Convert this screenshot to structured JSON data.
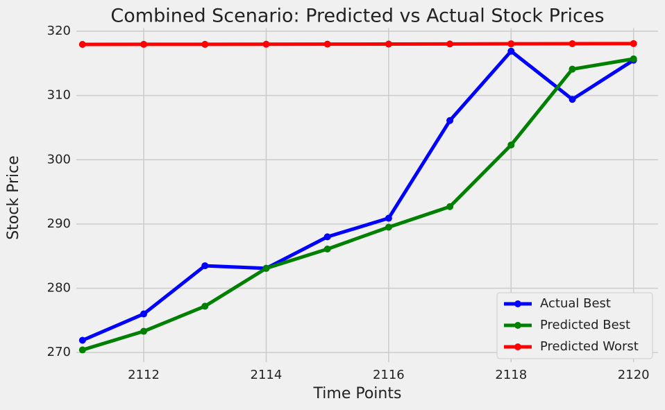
{
  "chart_data": {
    "type": "line",
    "title": "Combined Scenario: Predicted vs Actual Stock Prices",
    "x_label": "Time Points",
    "y_label": "Stock Price",
    "x": [
      2111,
      2112,
      2113,
      2114,
      2115,
      2116,
      2117,
      2118,
      2119,
      2120
    ],
    "series": [
      {
        "name": "Actual Best",
        "color": "#0000ff",
        "values": [
          271.9,
          276.0,
          283.5,
          283.1,
          288.0,
          290.9,
          306.1,
          316.9,
          309.4,
          315.5
        ]
      },
      {
        "name": "Predicted Best",
        "color": "#008000",
        "values": [
          270.4,
          273.3,
          277.2,
          283.1,
          286.1,
          289.5,
          292.7,
          302.3,
          314.1,
          315.7
        ]
      },
      {
        "name": "Predicted Worst",
        "color": "#ff0000",
        "values": [
          317.95,
          317.96,
          317.96,
          317.98,
          317.99,
          318.0,
          318.02,
          318.04,
          318.06,
          318.08
        ]
      }
    ],
    "xlim": [
      2110.9,
      2120.4
    ],
    "xticks": [
      2112,
      2114,
      2116,
      2118,
      2120
    ],
    "ylim": [
      268.5,
      320.5
    ],
    "yticks": [
      270,
      280,
      290,
      300,
      310,
      320
    ],
    "grid": true,
    "legend": "lower right"
  }
}
